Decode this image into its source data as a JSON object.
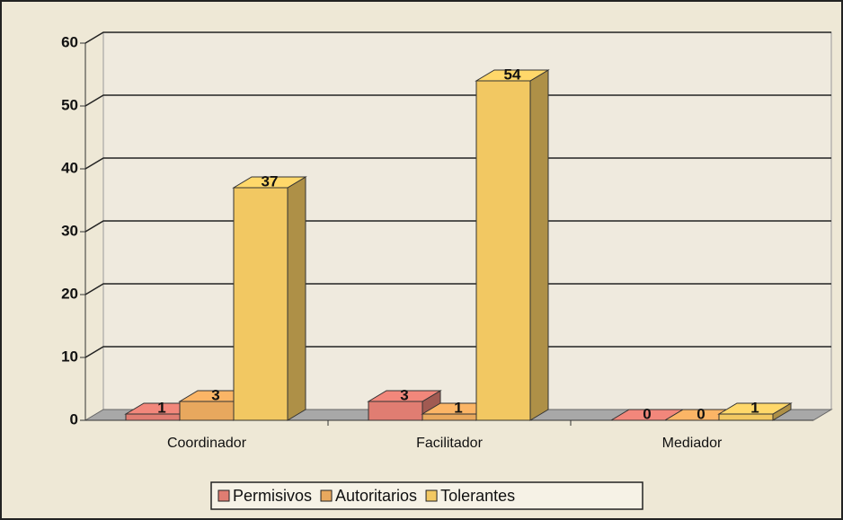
{
  "chart_data": {
    "type": "bar3d",
    "categories": [
      "Coordinador",
      "Facilitador",
      "Mediador"
    ],
    "series": [
      {
        "name": "Permisivos",
        "color": "#e07d72",
        "values": [
          1,
          3,
          0
        ]
      },
      {
        "name": "Autoritarios",
        "color": "#e8a85e",
        "values": [
          3,
          1,
          0
        ]
      },
      {
        "name": "Tolerantes",
        "color": "#f2c862",
        "values": [
          37,
          54,
          1
        ]
      }
    ],
    "ylim": [
      0,
      60
    ],
    "yticks": [
      0,
      10,
      20,
      30,
      40,
      50,
      60
    ],
    "grid": true,
    "legend": "bottom"
  }
}
